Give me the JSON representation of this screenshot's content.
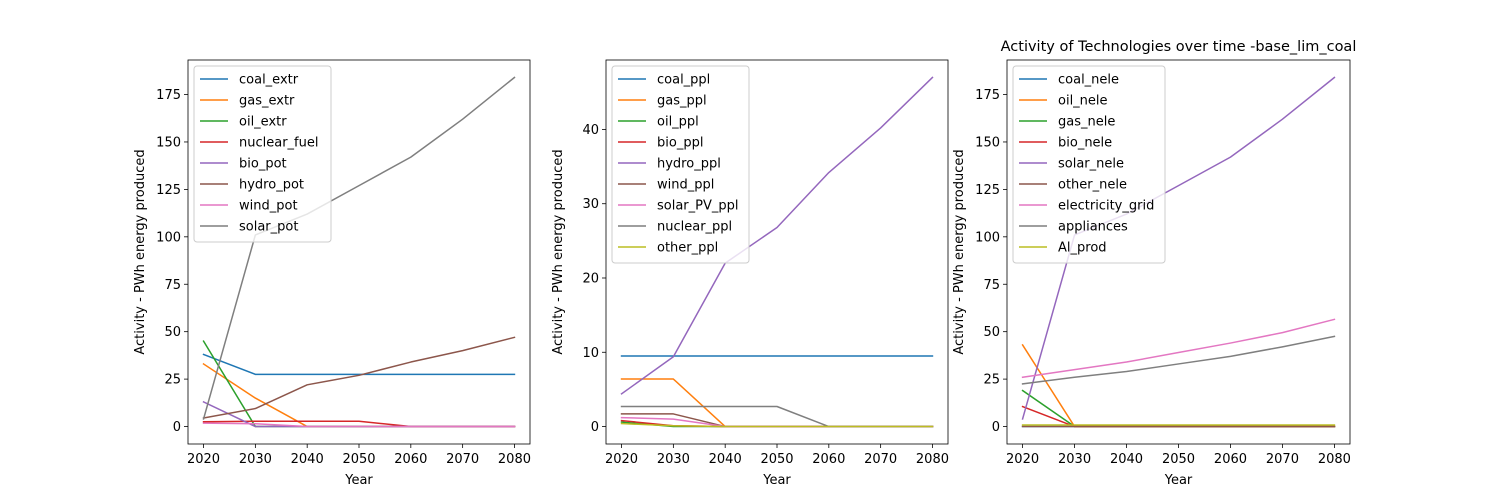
{
  "chart_data": [
    {
      "type": "line",
      "title": "",
      "xlabel": "Year",
      "ylabel": "Activity - PWh energy produced",
      "x": [
        2020,
        2030,
        2040,
        2050,
        2060,
        2070,
        2080
      ],
      "xlim": [
        2017,
        2083
      ],
      "ylim": [
        -9.2,
        193.2
      ],
      "xticks": [
        2020,
        2030,
        2040,
        2050,
        2060,
        2070,
        2080
      ],
      "yticks": [
        0,
        25,
        50,
        75,
        100,
        125,
        150,
        175
      ],
      "legend": "upper-left",
      "series": [
        {
          "name": "coal_extr",
          "color": "#1f77b4",
          "values": [
            38,
            27.5,
            27.5,
            27.5,
            27.5,
            27.5,
            27.5
          ]
        },
        {
          "name": "gas_extr",
          "color": "#ff7f0e",
          "values": [
            33,
            15,
            0,
            0,
            0,
            0,
            0
          ]
        },
        {
          "name": "oil_extr",
          "color": "#2ca02c",
          "values": [
            45,
            0,
            0,
            0,
            0,
            0,
            0
          ]
        },
        {
          "name": "nuclear_fuel",
          "color": "#d62728",
          "values": [
            2.5,
            2.8,
            2.8,
            2.8,
            0,
            0,
            0
          ]
        },
        {
          "name": "bio_pot",
          "color": "#9467bd",
          "values": [
            13,
            0,
            0,
            0,
            0,
            0,
            0
          ]
        },
        {
          "name": "hydro_pot",
          "color": "#8c564b",
          "values": [
            4.5,
            9.5,
            22,
            27,
            34,
            40,
            47
          ]
        },
        {
          "name": "wind_pot",
          "color": "#e377c2",
          "values": [
            1.8,
            1.5,
            0,
            0,
            0,
            0,
            0
          ]
        },
        {
          "name": "solar_pot",
          "color": "#7f7f7f",
          "values": [
            4,
            101,
            112,
            127,
            142,
            162,
            184
          ]
        }
      ]
    },
    {
      "type": "line",
      "title": "",
      "xlabel": "Year",
      "ylabel": "Activity - PWh energy produced",
      "x": [
        2020,
        2030,
        2040,
        2050,
        2060,
        2070,
        2080
      ],
      "xlim": [
        2017,
        2083
      ],
      "ylim": [
        -2.35,
        49.35
      ],
      "xticks": [
        2020,
        2030,
        2040,
        2050,
        2060,
        2070,
        2080
      ],
      "yticks": [
        0,
        10,
        20,
        30,
        40
      ],
      "legend": "upper-left",
      "series": [
        {
          "name": "coal_ppl",
          "color": "#1f77b4",
          "values": [
            9.5,
            9.5,
            9.5,
            9.5,
            9.5,
            9.5,
            9.5
          ]
        },
        {
          "name": "gas_ppl",
          "color": "#ff7f0e",
          "values": [
            6.4,
            6.4,
            0,
            0,
            0,
            0,
            0
          ]
        },
        {
          "name": "oil_ppl",
          "color": "#2ca02c",
          "values": [
            0.6,
            0,
            0,
            0,
            0,
            0,
            0
          ]
        },
        {
          "name": "bio_ppl",
          "color": "#d62728",
          "values": [
            0.8,
            0.1,
            0,
            0,
            0,
            0,
            0
          ]
        },
        {
          "name": "hydro_ppl",
          "color": "#9467bd",
          "values": [
            4.4,
            9.4,
            22,
            26.8,
            34.2,
            40.2,
            47
          ]
        },
        {
          "name": "wind_ppl",
          "color": "#8c564b",
          "values": [
            1.7,
            1.7,
            0,
            0,
            0,
            0,
            0
          ]
        },
        {
          "name": "solar_PV_ppl",
          "color": "#e377c2",
          "values": [
            1.2,
            1.0,
            0,
            0,
            0,
            0,
            0
          ]
        },
        {
          "name": "nuclear_ppl",
          "color": "#7f7f7f",
          "values": [
            2.7,
            2.7,
            2.7,
            2.7,
            0,
            0,
            0
          ]
        },
        {
          "name": "other_ppl",
          "color": "#bcbd22",
          "values": [
            0.4,
            0.1,
            0,
            0,
            0,
            0,
            0
          ]
        }
      ]
    },
    {
      "type": "line",
      "title": "Activity of Technologies over time -base_lim_coal",
      "xlabel": "Year",
      "ylabel": "Activity - PWh energy produced",
      "x": [
        2020,
        2030,
        2040,
        2050,
        2060,
        2070,
        2080
      ],
      "xlim": [
        2017,
        2083
      ],
      "ylim": [
        -9.2,
        193.2
      ],
      "xticks": [
        2020,
        2030,
        2040,
        2050,
        2060,
        2070,
        2080
      ],
      "yticks": [
        0,
        25,
        50,
        75,
        100,
        125,
        150,
        175
      ],
      "legend": "upper-left",
      "series": [
        {
          "name": "coal_nele",
          "color": "#1f77b4",
          "values": [
            0,
            0,
            0,
            0,
            0,
            0,
            0
          ]
        },
        {
          "name": "oil_nele",
          "color": "#ff7f0e",
          "values": [
            43,
            0,
            0,
            0,
            0,
            0,
            0
          ]
        },
        {
          "name": "gas_nele",
          "color": "#2ca02c",
          "values": [
            19,
            0,
            0,
            0,
            0,
            0,
            0
          ]
        },
        {
          "name": "bio_nele",
          "color": "#d62728",
          "values": [
            10.5,
            0,
            0,
            0,
            0,
            0,
            0
          ]
        },
        {
          "name": "solar_nele",
          "color": "#9467bd",
          "values": [
            4,
            101,
            112,
            127,
            142,
            162,
            184
          ]
        },
        {
          "name": "other_nele",
          "color": "#8c564b",
          "values": [
            0,
            0,
            0,
            0,
            0,
            0,
            0
          ]
        },
        {
          "name": "electricity_grid",
          "color": "#e377c2",
          "values": [
            26,
            30,
            34,
            39,
            44,
            49.5,
            56.5
          ]
        },
        {
          "name": "appliances",
          "color": "#7f7f7f",
          "values": [
            22.5,
            26,
            29,
            33,
            37,
            42,
            47.5
          ]
        },
        {
          "name": "Al_prod",
          "color": "#bcbd22",
          "values": [
            0.8,
            0.8,
            0.8,
            0.8,
            0.8,
            0.8,
            0.8
          ]
        }
      ]
    }
  ]
}
